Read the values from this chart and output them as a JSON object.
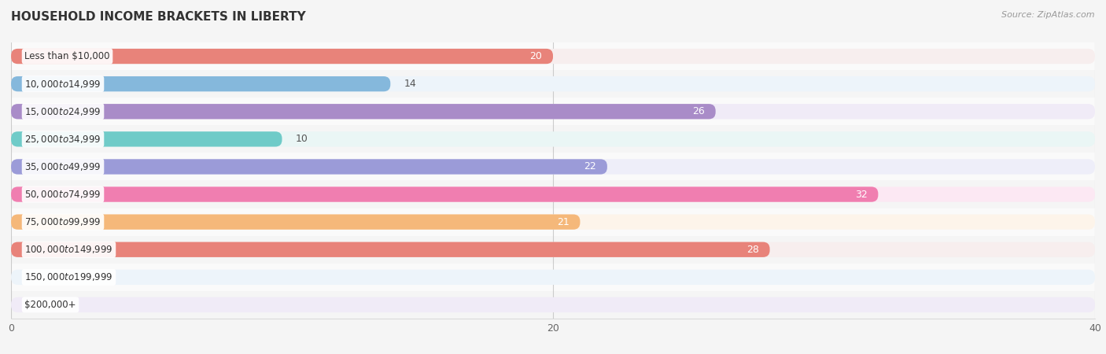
{
  "title": "HOUSEHOLD INCOME BRACKETS IN LIBERTY",
  "source": "Source: ZipAtlas.com",
  "categories": [
    "Less than $10,000",
    "$10,000 to $14,999",
    "$15,000 to $24,999",
    "$25,000 to $34,999",
    "$35,000 to $49,999",
    "$50,000 to $74,999",
    "$75,000 to $99,999",
    "$100,000 to $149,999",
    "$150,000 to $199,999",
    "$200,000+"
  ],
  "values": [
    20,
    14,
    26,
    10,
    22,
    32,
    21,
    28,
    0,
    0
  ],
  "bar_colors": [
    "#E8837A",
    "#85B8DC",
    "#A98CC8",
    "#6FCBC8",
    "#9B9BD8",
    "#F07EB0",
    "#F5B87A",
    "#E8837A",
    "#A8C8E8",
    "#C8B8DC"
  ],
  "bar_bg_colors": [
    "#F7EEEE",
    "#EDF4FA",
    "#F0EBF7",
    "#EAF6F5",
    "#EEEEF9",
    "#FCE8F3",
    "#FDF4EA",
    "#F7EEEE",
    "#EDF4FA",
    "#F0EBF7"
  ],
  "row_bg_colors": [
    "#FAFAFA",
    "#F5F5F5",
    "#FAFAFA",
    "#F5F5F5",
    "#FAFAFA",
    "#F5F5F5",
    "#FAFAFA",
    "#F5F5F5",
    "#FAFAFA",
    "#F5F5F5"
  ],
  "xlim": [
    0,
    40
  ],
  "xticks": [
    0,
    20,
    40
  ],
  "figsize": [
    14.06,
    4.5
  ],
  "dpi": 100,
  "bar_height": 0.55,
  "inside_label_threshold": 20,
  "label_fontsize": 9,
  "cat_fontsize": 8.5
}
